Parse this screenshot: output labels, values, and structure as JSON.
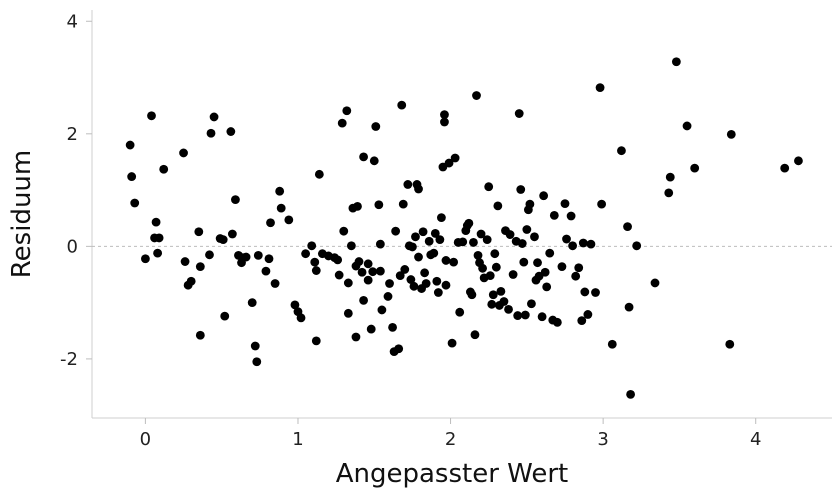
{
  "chart_data": {
    "type": "scatter",
    "title": "",
    "xlabel": "Angepasster Wert",
    "ylabel": "Residuum",
    "xlim": [
      -0.35,
      4.5
    ],
    "ylim": [
      -3.05,
      4.2
    ],
    "x_ticks": [
      0,
      1,
      2,
      3,
      4
    ],
    "y_ticks": [
      -2,
      0,
      2,
      4
    ],
    "x_tick_labels": [
      "0",
      "1",
      "2",
      "3",
      "4"
    ],
    "y_tick_labels": [
      "-2",
      "0",
      "2",
      "4"
    ],
    "reference_line_y": 0,
    "grid": false,
    "point_color": "#000000",
    "points": [
      [
        -0.1,
        1.8
      ],
      [
        -0.09,
        1.24
      ],
      [
        -0.07,
        0.77
      ],
      [
        0.0,
        -0.22
      ],
      [
        0.04,
        2.32
      ],
      [
        0.06,
        0.15
      ],
      [
        0.07,
        0.43
      ],
      [
        0.08,
        -0.12
      ],
      [
        0.09,
        0.15
      ],
      [
        0.12,
        1.37
      ],
      [
        0.25,
        1.66
      ],
      [
        0.26,
        -0.27
      ],
      [
        0.28,
        -0.69
      ],
      [
        0.3,
        -0.62
      ],
      [
        0.35,
        0.26
      ],
      [
        0.36,
        -0.36
      ],
      [
        0.36,
        -1.58
      ],
      [
        0.42,
        -0.15
      ],
      [
        0.43,
        2.01
      ],
      [
        0.45,
        2.3
      ],
      [
        0.49,
        0.14
      ],
      [
        0.51,
        0.12
      ],
      [
        0.52,
        -1.24
      ],
      [
        0.56,
        2.04
      ],
      [
        0.57,
        0.22
      ],
      [
        0.59,
        0.83
      ],
      [
        0.61,
        -0.16
      ],
      [
        0.63,
        -0.29
      ],
      [
        0.64,
        -0.2
      ],
      [
        0.66,
        -0.19
      ],
      [
        0.7,
        -1.0
      ],
      [
        0.72,
        -1.77
      ],
      [
        0.73,
        -2.05
      ],
      [
        0.74,
        -0.16
      ],
      [
        0.79,
        -0.44
      ],
      [
        0.81,
        -0.22
      ],
      [
        0.82,
        0.42
      ],
      [
        0.85,
        -0.66
      ],
      [
        0.88,
        0.98
      ],
      [
        0.89,
        0.68
      ],
      [
        0.94,
        0.47
      ],
      [
        0.98,
        -1.04
      ],
      [
        1.0,
        -1.16
      ],
      [
        1.02,
        -1.27
      ],
      [
        1.05,
        -0.13
      ],
      [
        1.09,
        0.01
      ],
      [
        1.11,
        -0.28
      ],
      [
        1.12,
        -0.43
      ],
      [
        1.12,
        -1.68
      ],
      [
        1.14,
        1.28
      ],
      [
        1.16,
        -0.13
      ],
      [
        1.2,
        -0.17
      ],
      [
        1.24,
        -0.2
      ],
      [
        1.26,
        -0.24
      ],
      [
        1.27,
        -0.51
      ],
      [
        1.29,
        2.19
      ],
      [
        1.3,
        0.27
      ],
      [
        1.32,
        2.41
      ],
      [
        1.33,
        -0.65
      ],
      [
        1.33,
        -1.19
      ],
      [
        1.35,
        0.01
      ],
      [
        1.36,
        0.68
      ],
      [
        1.38,
        -0.35
      ],
      [
        1.38,
        -1.61
      ],
      [
        1.39,
        0.71
      ],
      [
        1.4,
        -0.27
      ],
      [
        1.42,
        -0.46
      ],
      [
        1.43,
        -0.96
      ],
      [
        1.43,
        1.59
      ],
      [
        1.46,
        -0.6
      ],
      [
        1.46,
        -0.31
      ],
      [
        1.48,
        -1.47
      ],
      [
        1.49,
        -0.45
      ],
      [
        1.5,
        1.52
      ],
      [
        1.51,
        2.13
      ],
      [
        1.53,
        0.74
      ],
      [
        1.54,
        0.04
      ],
      [
        1.54,
        -0.44
      ],
      [
        1.55,
        -1.13
      ],
      [
        1.59,
        -0.89
      ],
      [
        1.6,
        -0.66
      ],
      [
        1.62,
        -1.44
      ],
      [
        1.63,
        -1.87
      ],
      [
        1.64,
        0.27
      ],
      [
        1.66,
        -1.82
      ],
      [
        1.67,
        -0.52
      ],
      [
        1.68,
        2.51
      ],
      [
        1.69,
        0.75
      ],
      [
        1.7,
        -0.41
      ],
      [
        1.72,
        1.1
      ],
      [
        1.73,
        0.01
      ],
      [
        1.74,
        -0.59
      ],
      [
        1.75,
        -0.01
      ],
      [
        1.76,
        -0.71
      ],
      [
        1.77,
        0.17
      ],
      [
        1.78,
        1.1
      ],
      [
        1.79,
        1.02
      ],
      [
        1.79,
        -0.19
      ],
      [
        1.81,
        -0.75
      ],
      [
        1.82,
        0.26
      ],
      [
        1.83,
        -0.47
      ],
      [
        1.84,
        -0.66
      ],
      [
        1.86,
        0.09
      ],
      [
        1.87,
        -0.15
      ],
      [
        1.89,
        -0.12
      ],
      [
        1.9,
        0.23
      ],
      [
        1.91,
        -0.62
      ],
      [
        1.92,
        -0.82
      ],
      [
        1.93,
        0.12
      ],
      [
        1.94,
        0.51
      ],
      [
        1.95,
        1.41
      ],
      [
        1.96,
        2.21
      ],
      [
        1.96,
        2.34
      ],
      [
        1.97,
        -0.69
      ],
      [
        1.97,
        -0.25
      ],
      [
        1.99,
        1.48
      ],
      [
        2.01,
        -1.72
      ],
      [
        2.02,
        -0.28
      ],
      [
        2.03,
        1.57
      ],
      [
        2.05,
        0.07
      ],
      [
        2.06,
        -1.17
      ],
      [
        2.08,
        0.08
      ],
      [
        2.1,
        0.28
      ],
      [
        2.11,
        0.37
      ],
      [
        2.12,
        0.41
      ],
      [
        2.13,
        -0.81
      ],
      [
        2.14,
        -0.86
      ],
      [
        2.15,
        0.07
      ],
      [
        2.16,
        -1.57
      ],
      [
        2.17,
        2.68
      ],
      [
        2.18,
        -0.16
      ],
      [
        2.19,
        -0.29
      ],
      [
        2.2,
        0.22
      ],
      [
        2.21,
        -0.39
      ],
      [
        2.22,
        -0.56
      ],
      [
        2.24,
        0.12
      ],
      [
        2.25,
        1.06
      ],
      [
        2.26,
        -0.52
      ],
      [
        2.27,
        -1.03
      ],
      [
        2.28,
        -0.86
      ],
      [
        2.29,
        -0.13
      ],
      [
        2.3,
        -0.37
      ],
      [
        2.31,
        0.72
      ],
      [
        2.32,
        -1.05
      ],
      [
        2.33,
        -0.8
      ],
      [
        2.35,
        -0.98
      ],
      [
        2.36,
        0.28
      ],
      [
        2.38,
        -1.12
      ],
      [
        2.39,
        0.21
      ],
      [
        2.41,
        -0.5
      ],
      [
        2.43,
        0.09
      ],
      [
        2.44,
        -1.23
      ],
      [
        2.45,
        2.36
      ],
      [
        2.46,
        1.01
      ],
      [
        2.47,
        0.05
      ],
      [
        2.48,
        -0.28
      ],
      [
        2.49,
        -1.22
      ],
      [
        2.5,
        0.3
      ],
      [
        2.51,
        0.65
      ],
      [
        2.52,
        0.75
      ],
      [
        2.53,
        -1.02
      ],
      [
        2.55,
        0.17
      ],
      [
        2.56,
        -0.6
      ],
      [
        2.57,
        -0.29
      ],
      [
        2.58,
        -0.53
      ],
      [
        2.6,
        -1.25
      ],
      [
        2.61,
        0.9
      ],
      [
        2.62,
        -0.46
      ],
      [
        2.63,
        -0.72
      ],
      [
        2.65,
        -0.12
      ],
      [
        2.67,
        -1.31
      ],
      [
        2.68,
        0.55
      ],
      [
        2.7,
        -1.35
      ],
      [
        2.73,
        -0.36
      ],
      [
        2.75,
        0.76
      ],
      [
        2.76,
        0.13
      ],
      [
        2.79,
        0.54
      ],
      [
        2.8,
        0.01
      ],
      [
        2.82,
        -0.53
      ],
      [
        2.84,
        -0.38
      ],
      [
        2.86,
        -1.32
      ],
      [
        2.87,
        0.06
      ],
      [
        2.88,
        -0.81
      ],
      [
        2.9,
        -1.21
      ],
      [
        2.92,
        0.04
      ],
      [
        2.95,
        -0.82
      ],
      [
        2.98,
        2.82
      ],
      [
        2.99,
        0.75
      ],
      [
        3.06,
        -1.74
      ],
      [
        3.12,
        1.7
      ],
      [
        3.16,
        0.35
      ],
      [
        3.17,
        -1.08
      ],
      [
        3.18,
        -2.63
      ],
      [
        3.22,
        0.01
      ],
      [
        3.34,
        -0.65
      ],
      [
        3.43,
        0.95
      ],
      [
        3.44,
        1.23
      ],
      [
        3.48,
        3.28
      ],
      [
        3.55,
        2.14
      ],
      [
        3.6,
        1.39
      ],
      [
        3.83,
        -1.74
      ],
      [
        3.84,
        1.99
      ],
      [
        4.19,
        1.39
      ],
      [
        4.28,
        1.52
      ]
    ]
  }
}
